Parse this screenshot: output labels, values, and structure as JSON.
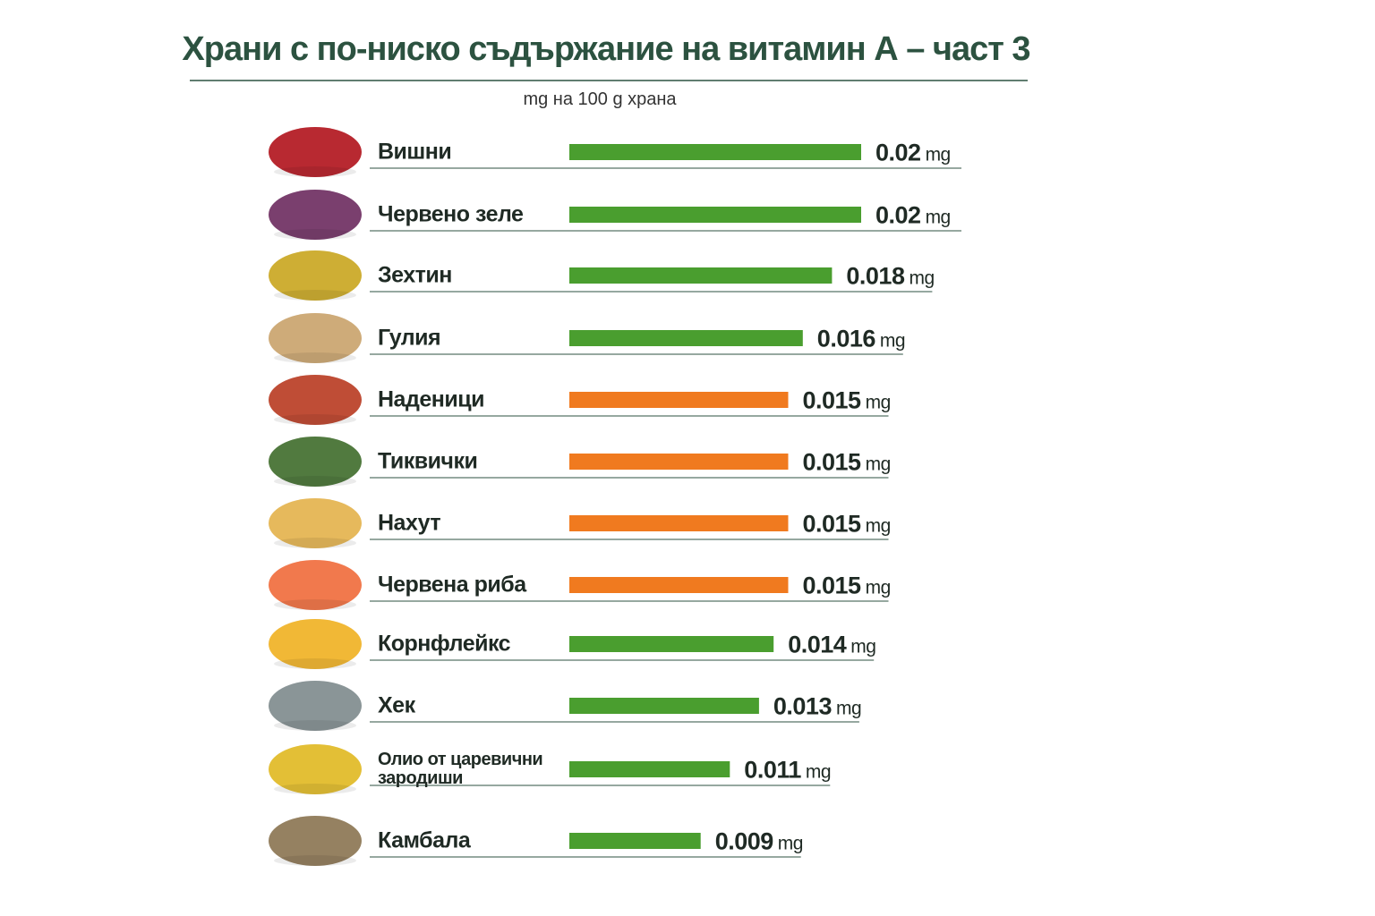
{
  "chart_data": {
    "type": "bar",
    "orientation": "horizontal",
    "title": "Храни с по-ниско съдържание на витамин А – част 3",
    "subtitle": "mg на 100 g храна",
    "unit": "mg",
    "categories": [
      "Вишни",
      "Червено зеле",
      "Зехтин",
      "Гулия",
      "Наденици",
      "Тиквички",
      "Нахут",
      "Червена риба",
      "Корнфлейкс",
      "Хек",
      "Олио от царевични зародиши",
      "Камбала"
    ],
    "values": [
      0.02,
      0.02,
      0.018,
      0.016,
      0.015,
      0.015,
      0.015,
      0.015,
      0.014,
      0.013,
      0.011,
      0.009
    ],
    "colors": [
      "#4a9e2f",
      "#4a9e2f",
      "#4a9e2f",
      "#4a9e2f",
      "#f07a1f",
      "#f07a1f",
      "#f07a1f",
      "#f07a1f",
      "#4a9e2f",
      "#4a9e2f",
      "#4a9e2f",
      "#4a9e2f"
    ]
  }
}
